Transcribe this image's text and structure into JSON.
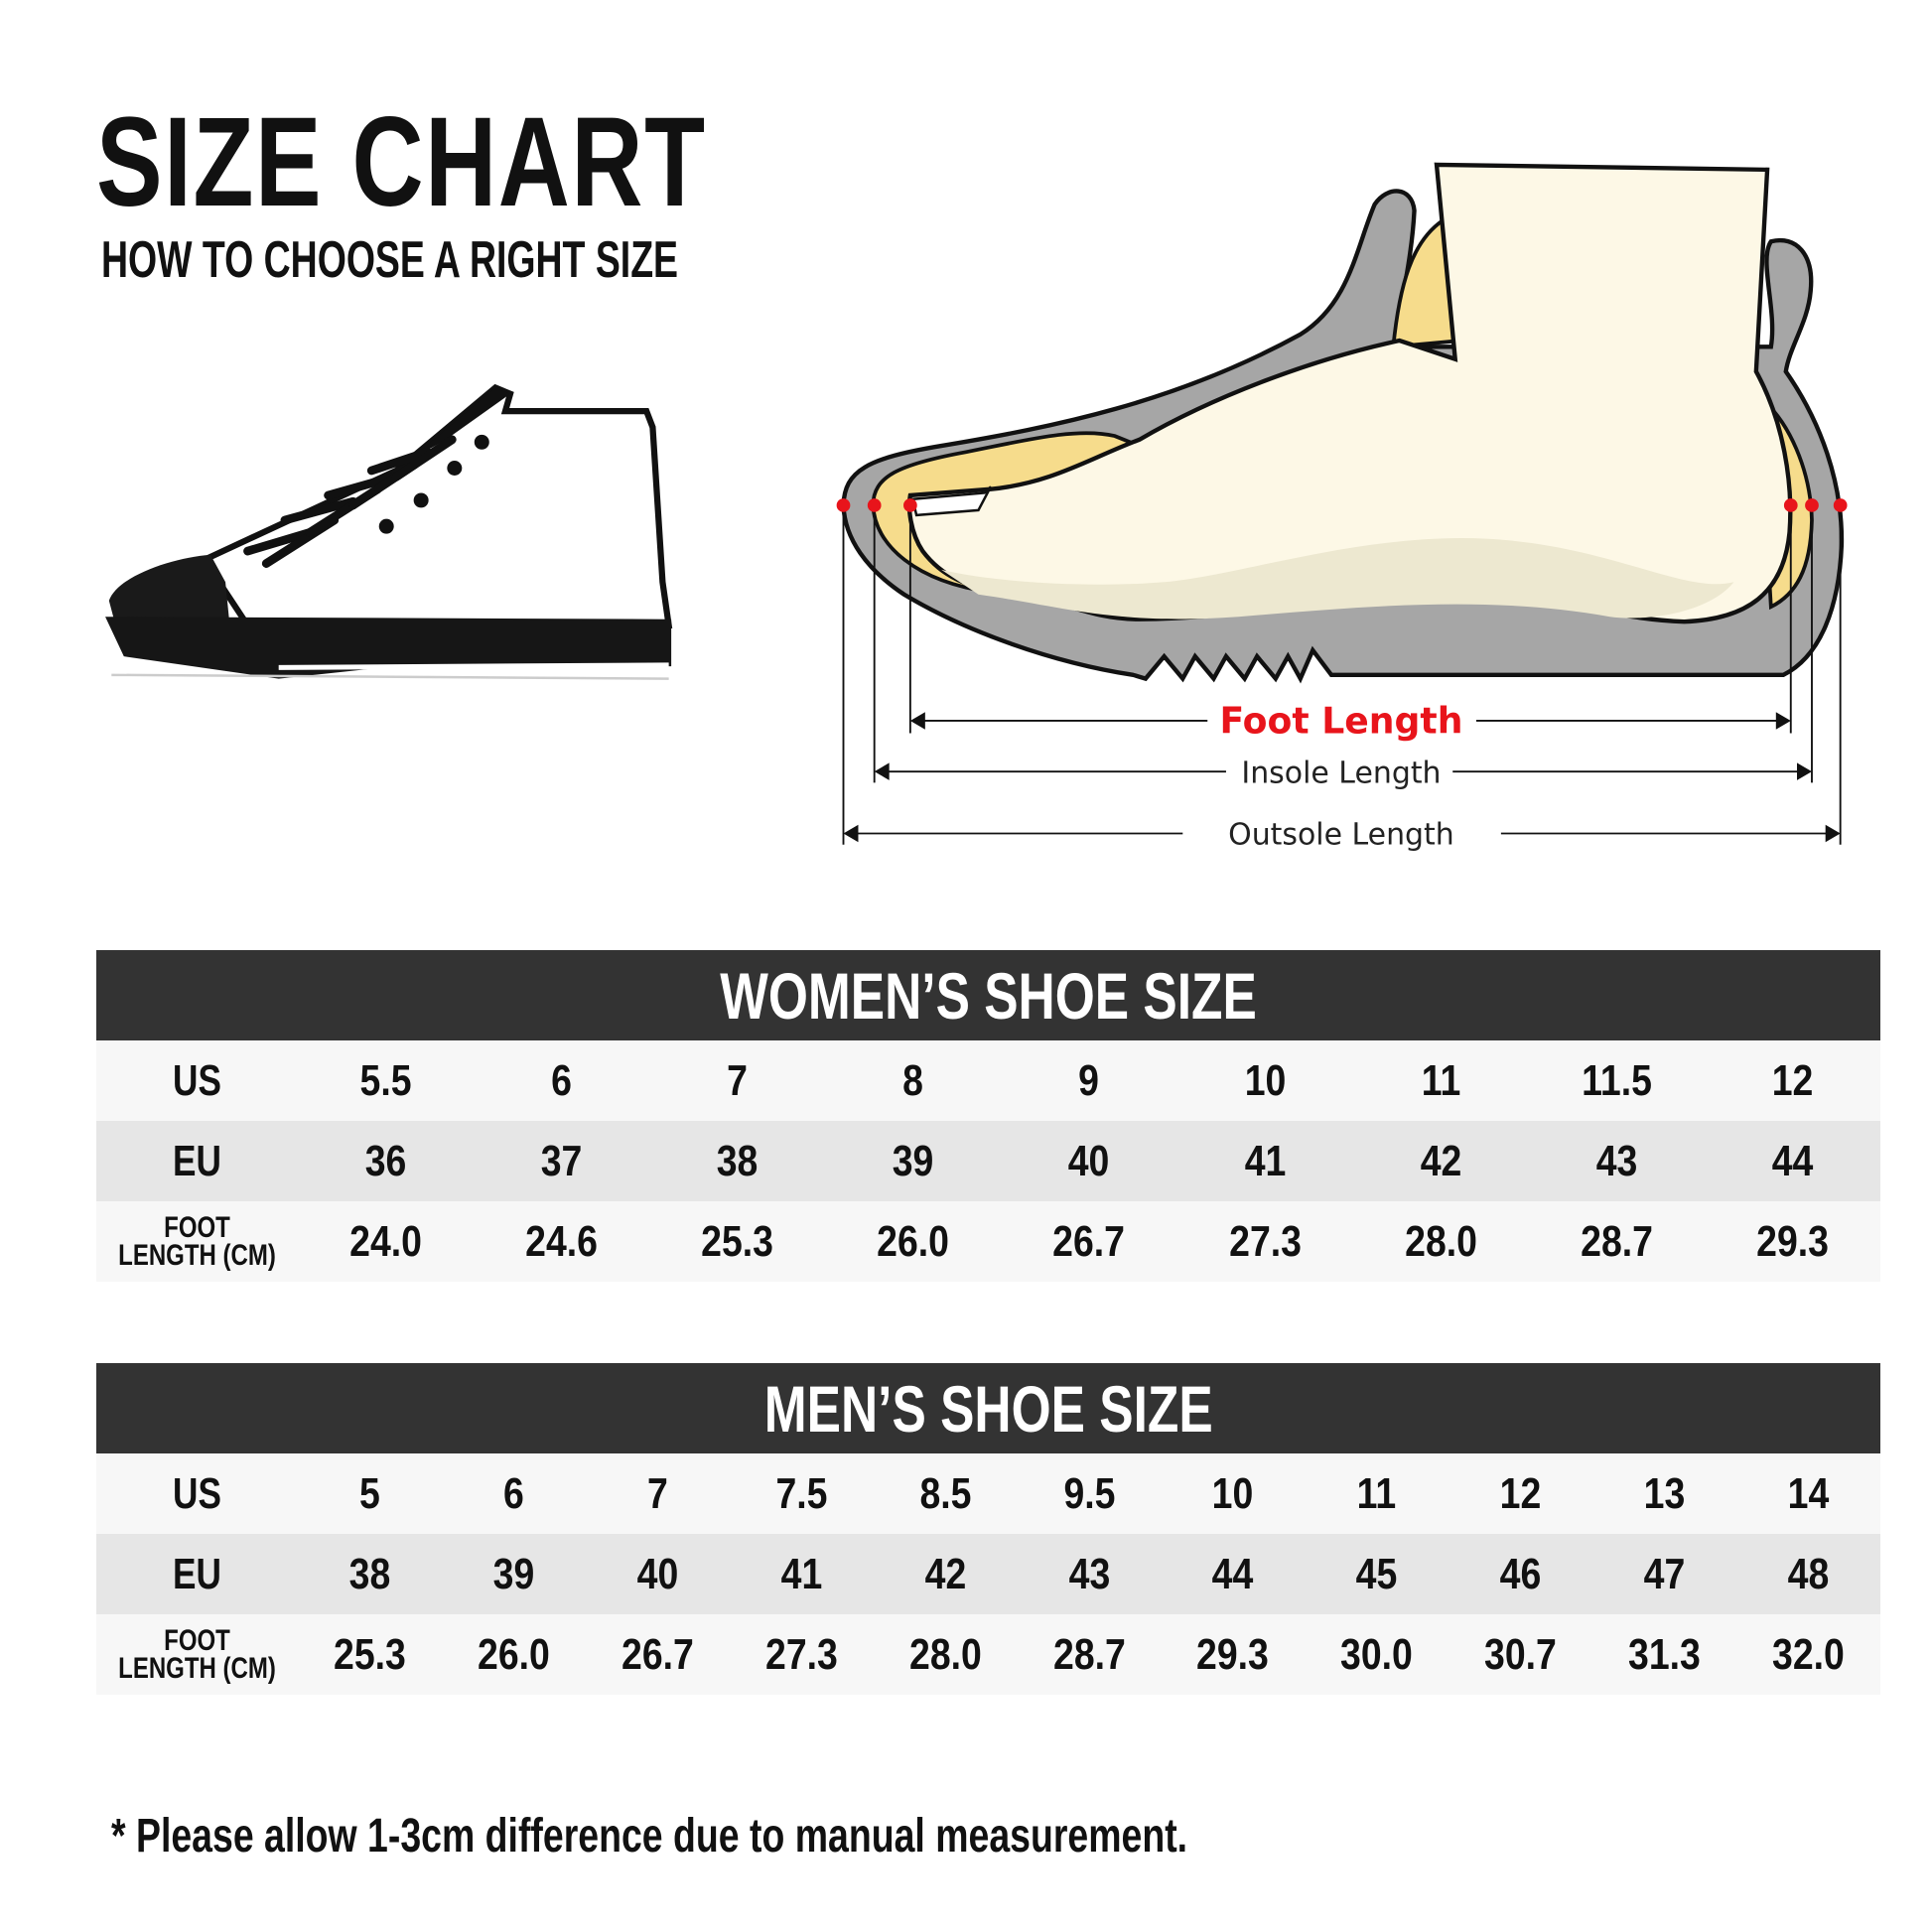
{
  "header": {
    "title": "SIZE CHART",
    "subtitle": "HOW TO CHOOSE A RIGHT SIZE"
  },
  "diagram": {
    "foot_length": "Foot Length",
    "insole_length": "Insole Length",
    "outsole_length": "Outsole Length",
    "colors": {
      "accent": "#e8141b",
      "sole": "#a6a6a6",
      "insole": "#f6dc8c",
      "foot": "#fdf8e6"
    }
  },
  "women": {
    "title": "WOMEN’S SHOE SIZE",
    "labels": {
      "us": "US",
      "eu": "EU",
      "foot_1": "FOOT",
      "foot_2": "LENGTH (CM)"
    },
    "us": [
      "5.5",
      "6",
      "7",
      "8",
      "9",
      "10",
      "11",
      "11.5",
      "12"
    ],
    "eu": [
      "36",
      "37",
      "38",
      "39",
      "40",
      "41",
      "42",
      "43",
      "44"
    ],
    "foot": [
      "24.0",
      "24.6",
      "25.3",
      "26.0",
      "26.7",
      "27.3",
      "28.0",
      "28.7",
      "29.3"
    ]
  },
  "men": {
    "title": "MEN’S SHOE SIZE",
    "labels": {
      "us": "US",
      "eu": "EU",
      "foot_1": "FOOT",
      "foot_2": "LENGTH (CM)"
    },
    "us": [
      "5",
      "6",
      "7",
      "7.5",
      "8.5",
      "9.5",
      "10",
      "11",
      "12",
      "13",
      "14"
    ],
    "eu": [
      "38",
      "39",
      "40",
      "41",
      "42",
      "43",
      "44",
      "45",
      "46",
      "47",
      "48"
    ],
    "foot": [
      "25.3",
      "26.0",
      "26.7",
      "27.3",
      "28.0",
      "28.7",
      "29.3",
      "30.0",
      "30.7",
      "31.3",
      "32.0"
    ]
  },
  "footnote": "* Please allow 1-3cm difference due to manual measurement."
}
